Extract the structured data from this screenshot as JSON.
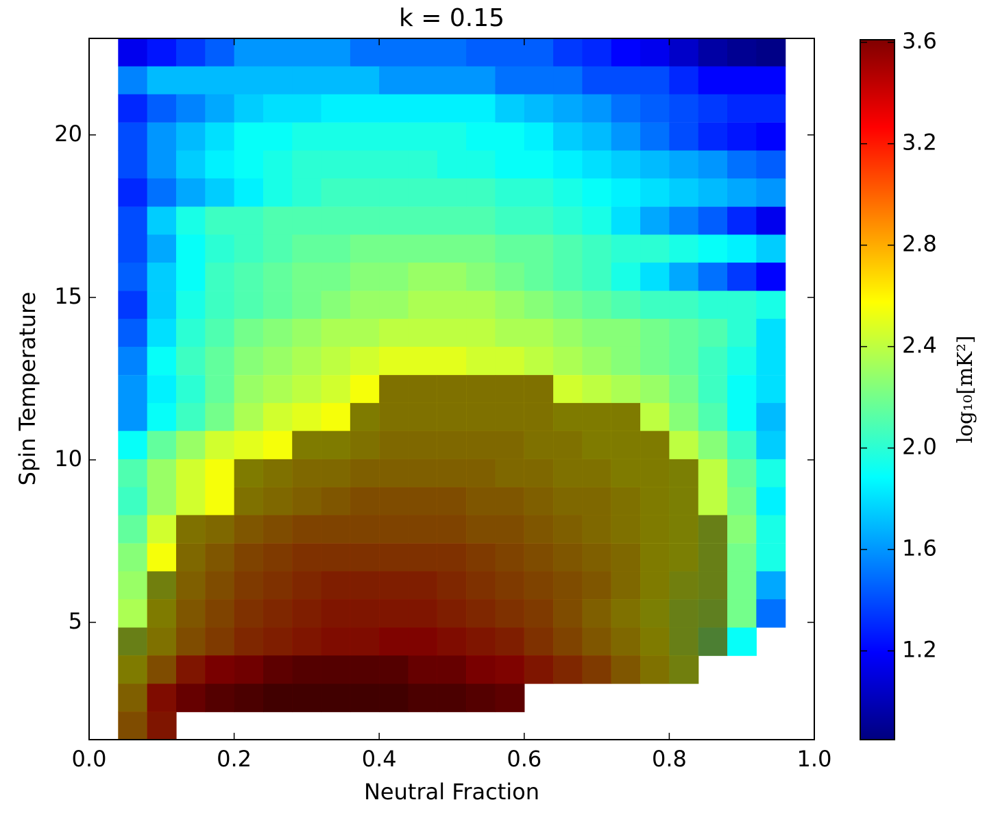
{
  "chart_data": {
    "type": "heatmap",
    "title": "k = 0.15",
    "xlabel": "Neutral Fraction",
    "ylabel": "Spin Temperature",
    "colorbar_label": "log₁₀[mK²]",
    "x": [
      0.06,
      0.1,
      0.14,
      0.18,
      0.22,
      0.26,
      0.3,
      0.34,
      0.38,
      0.42,
      0.46,
      0.5,
      0.54,
      0.58,
      0.62,
      0.66,
      0.7,
      0.74,
      0.78,
      0.82,
      0.86,
      0.9,
      0.94
    ],
    "y": [
      22.54,
      21.68,
      20.82,
      19.95,
      19.09,
      18.23,
      17.36,
      16.5,
      15.64,
      14.77,
      13.91,
      13.05,
      12.18,
      11.32,
      10.46,
      9.59,
      8.73,
      7.87,
      7.0,
      6.14,
      5.28,
      4.41,
      3.55,
      2.68,
      1.82
    ],
    "values": [
      [
        1.15,
        1.25,
        1.35,
        1.45,
        1.6,
        1.6,
        1.6,
        1.6,
        1.5,
        1.5,
        1.5,
        1.5,
        1.45,
        1.45,
        1.45,
        1.35,
        1.3,
        1.2,
        1.15,
        1.05,
        0.95,
        0.9,
        0.87
      ],
      [
        1.55,
        1.7,
        1.7,
        1.7,
        1.7,
        1.7,
        1.7,
        1.7,
        1.7,
        1.6,
        1.6,
        1.6,
        1.6,
        1.5,
        1.5,
        1.5,
        1.4,
        1.4,
        1.4,
        1.3,
        1.2,
        1.2,
        1.2
      ],
      [
        1.3,
        1.45,
        1.55,
        1.65,
        1.75,
        1.8,
        1.8,
        1.85,
        1.85,
        1.85,
        1.85,
        1.85,
        1.85,
        1.75,
        1.7,
        1.65,
        1.6,
        1.5,
        1.45,
        1.4,
        1.35,
        1.3,
        1.3
      ],
      [
        1.4,
        1.6,
        1.7,
        1.8,
        1.9,
        1.9,
        1.95,
        1.95,
        1.95,
        1.95,
        1.95,
        1.95,
        1.9,
        1.9,
        1.85,
        1.75,
        1.7,
        1.6,
        1.5,
        1.4,
        1.3,
        1.25,
        1.2
      ],
      [
        1.4,
        1.6,
        1.75,
        1.85,
        1.9,
        1.95,
        2.0,
        2.0,
        2.0,
        2.0,
        2.0,
        1.95,
        1.95,
        1.9,
        1.9,
        1.85,
        1.8,
        1.75,
        1.7,
        1.65,
        1.6,
        1.5,
        1.45
      ],
      [
        1.3,
        1.5,
        1.65,
        1.75,
        1.85,
        1.95,
        2.0,
        2.05,
        2.05,
        2.05,
        2.05,
        2.05,
        2.05,
        2.0,
        2.0,
        1.95,
        1.9,
        1.85,
        1.8,
        1.75,
        1.7,
        1.65,
        1.6
      ],
      [
        1.4,
        1.75,
        1.95,
        2.05,
        2.05,
        2.1,
        2.1,
        2.1,
        2.1,
        2.1,
        2.1,
        2.1,
        2.1,
        2.05,
        2.05,
        2.0,
        1.95,
        1.8,
        1.65,
        1.55,
        1.45,
        1.3,
        1.15
      ],
      [
        1.4,
        1.65,
        1.9,
        2.0,
        2.05,
        2.1,
        2.15,
        2.15,
        2.2,
        2.2,
        2.2,
        2.2,
        2.2,
        2.15,
        2.15,
        2.1,
        2.05,
        2.0,
        2.0,
        1.95,
        1.9,
        1.85,
        1.75
      ],
      [
        1.45,
        1.75,
        1.9,
        2.05,
        2.1,
        2.15,
        2.2,
        2.2,
        2.25,
        2.25,
        2.3,
        2.3,
        2.25,
        2.2,
        2.15,
        2.1,
        2.05,
        1.95,
        1.8,
        1.65,
        1.5,
        1.35,
        1.2
      ],
      [
        1.35,
        1.75,
        1.95,
        2.05,
        2.1,
        2.15,
        2.2,
        2.25,
        2.3,
        2.3,
        2.35,
        2.35,
        2.35,
        2.3,
        2.25,
        2.2,
        2.15,
        2.1,
        2.05,
        2.05,
        2.0,
        2.0,
        1.95
      ],
      [
        1.45,
        1.8,
        2.0,
        2.1,
        2.2,
        2.25,
        2.3,
        2.35,
        2.35,
        2.4,
        2.4,
        2.4,
        2.4,
        2.35,
        2.35,
        2.3,
        2.25,
        2.25,
        2.2,
        2.15,
        2.1,
        2.0,
        1.8
      ],
      [
        1.55,
        1.9,
        2.05,
        2.15,
        2.25,
        2.3,
        2.35,
        2.4,
        2.45,
        2.5,
        2.5,
        2.5,
        2.45,
        2.45,
        2.4,
        2.35,
        2.3,
        2.25,
        2.2,
        2.15,
        2.05,
        1.95,
        1.8
      ],
      [
        1.6,
        1.85,
        2.0,
        2.15,
        2.3,
        2.35,
        2.4,
        2.45,
        2.55,
        2.65,
        2.65,
        2.65,
        2.65,
        2.65,
        2.65,
        2.45,
        2.4,
        2.35,
        2.3,
        2.2,
        2.05,
        1.9,
        1.8
      ],
      [
        1.6,
        1.9,
        2.05,
        2.2,
        2.35,
        2.45,
        2.5,
        2.55,
        2.6,
        2.65,
        2.65,
        2.65,
        2.65,
        2.65,
        2.65,
        2.6,
        2.6,
        2.6,
        2.4,
        2.25,
        2.1,
        1.9,
        1.7
      ],
      [
        1.9,
        2.15,
        2.3,
        2.45,
        2.5,
        2.55,
        2.6,
        2.6,
        2.65,
        2.7,
        2.7,
        2.7,
        2.7,
        2.7,
        2.65,
        2.65,
        2.6,
        2.6,
        2.6,
        2.4,
        2.25,
        2.05,
        1.75
      ],
      [
        2.1,
        2.3,
        2.45,
        2.55,
        2.6,
        2.65,
        2.7,
        2.7,
        2.75,
        2.75,
        2.75,
        2.75,
        2.75,
        2.7,
        2.7,
        2.65,
        2.65,
        2.6,
        2.6,
        2.55,
        2.4,
        2.15,
        1.95
      ],
      [
        2.05,
        2.3,
        2.45,
        2.55,
        2.65,
        2.7,
        2.75,
        2.8,
        2.85,
        2.85,
        2.85,
        2.85,
        2.8,
        2.8,
        2.75,
        2.7,
        2.7,
        2.65,
        2.6,
        2.55,
        2.4,
        2.2,
        1.85
      ],
      [
        2.15,
        2.45,
        2.65,
        2.7,
        2.8,
        2.85,
        2.9,
        2.9,
        2.9,
        2.9,
        2.9,
        2.9,
        2.85,
        2.85,
        2.8,
        2.75,
        2.7,
        2.65,
        2.6,
        2.55,
        2.45,
        2.25,
        1.95
      ],
      [
        2.25,
        2.55,
        2.7,
        2.8,
        2.9,
        2.95,
        3.0,
        3.0,
        3.0,
        3.0,
        3.0,
        3.0,
        2.95,
        2.9,
        2.85,
        2.8,
        2.75,
        2.7,
        2.6,
        2.55,
        2.45,
        2.2,
        1.95
      ],
      [
        2.3,
        2.5,
        2.75,
        2.85,
        2.95,
        3.0,
        3.05,
        3.1,
        3.1,
        3.1,
        3.1,
        3.05,
        3.0,
        2.95,
        2.9,
        2.85,
        2.8,
        2.7,
        2.6,
        2.5,
        2.45,
        2.2,
        1.65
      ],
      [
        2.35,
        2.6,
        2.8,
        2.9,
        3.0,
        3.05,
        3.1,
        3.15,
        3.15,
        3.15,
        3.15,
        3.1,
        3.05,
        3.0,
        2.95,
        2.85,
        2.75,
        2.65,
        2.55,
        2.45,
        2.4,
        2.2,
        1.5
      ],
      [
        2.45,
        2.65,
        2.85,
        2.95,
        3.05,
        3.1,
        3.15,
        3.2,
        3.2,
        3.25,
        3.25,
        3.2,
        3.15,
        3.1,
        3.0,
        2.9,
        2.8,
        2.7,
        2.6,
        2.45,
        2.3,
        1.9,
        null
      ],
      [
        2.6,
        2.85,
        3.15,
        3.3,
        3.35,
        3.45,
        3.5,
        3.5,
        3.5,
        3.5,
        3.4,
        3.4,
        3.3,
        3.25,
        3.15,
        3.05,
        2.95,
        2.8,
        2.65,
        2.5,
        null,
        null,
        null
      ],
      [
        2.75,
        3.2,
        3.4,
        3.5,
        3.55,
        3.6,
        3.6,
        3.6,
        3.6,
        3.6,
        3.55,
        3.55,
        3.5,
        3.45,
        null,
        null,
        null,
        null,
        null,
        null,
        null,
        null,
        null
      ],
      [
        2.85,
        3.15,
        null,
        null,
        null,
        null,
        null,
        null,
        null,
        null,
        null,
        null,
        null,
        null,
        null,
        null,
        null,
        null,
        null,
        null,
        null,
        null,
        null
      ]
    ],
    "shaded": [
      null,
      null,
      null,
      null,
      null,
      null,
      null,
      null,
      null,
      null,
      null,
      null,
      [
        9,
        14
      ],
      [
        8,
        17
      ],
      [
        6,
        18
      ],
      [
        4,
        19
      ],
      [
        4,
        19
      ],
      [
        2,
        20
      ],
      [
        2,
        20
      ],
      [
        1,
        20
      ],
      [
        1,
        20
      ],
      [
        0,
        20
      ],
      [
        0,
        19
      ],
      [
        0,
        13
      ],
      [
        0,
        1
      ]
    ],
    "colormap": "jet",
    "xlim": [
      0,
      1
    ],
    "xticks": [
      {
        "value": 0,
        "label": "0.0"
      },
      {
        "value": 0.2,
        "label": "0.2"
      },
      {
        "value": 0.4,
        "label": "0.4"
      },
      {
        "value": 0.6,
        "label": "0.6"
      },
      {
        "value": 0.8,
        "label": "0.8"
      },
      {
        "value": 1,
        "label": "1.0"
      }
    ],
    "ylim": [
      1.39,
      22.97
    ],
    "yticks": [
      5,
      10,
      15,
      20
    ],
    "clim": [
      0.85,
      3.61
    ],
    "cticks": [
      1.2,
      1.6,
      2.0,
      2.4,
      2.8,
      3.2,
      3.6
    ]
  }
}
